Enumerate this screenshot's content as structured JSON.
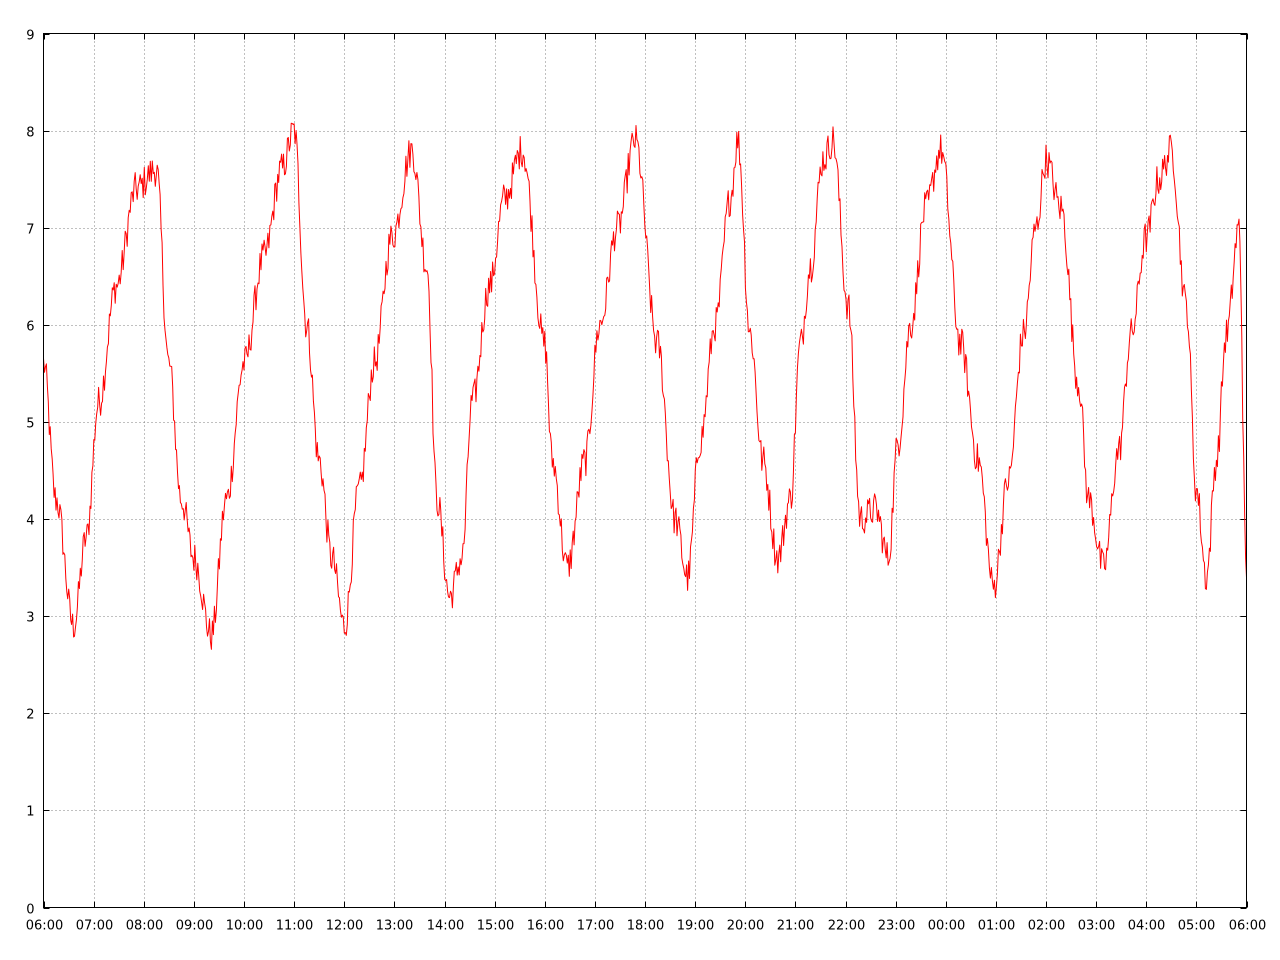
{
  "chart_data": {
    "type": "line",
    "title": "",
    "xlabel": "",
    "ylabel": "",
    "ylim": [
      0,
      9
    ],
    "y_ticks": [
      0,
      1,
      2,
      3,
      4,
      5,
      6,
      7,
      8,
      9
    ],
    "x_ticks": [
      "06:00",
      "07:00",
      "08:00",
      "09:00",
      "10:00",
      "11:00",
      "12:00",
      "13:00",
      "14:00",
      "15:00",
      "16:00",
      "17:00",
      "18:00",
      "19:00",
      "20:00",
      "21:00",
      "22:00",
      "23:00",
      "00:00",
      "01:00",
      "02:00",
      "03:00",
      "04:00",
      "05:00",
      "06:00"
    ],
    "x_range_hours": [
      0,
      24
    ],
    "grid": true,
    "line_color": "#ff0000",
    "series": [
      {
        "x_hours": [
          0.0,
          0.25,
          0.6,
          0.85,
          1.1,
          1.45,
          1.85,
          2.25,
          2.5,
          2.75,
          3.0,
          3.35,
          3.65,
          4.0,
          4.4,
          4.75,
          5.0,
          5.25,
          5.5,
          5.75,
          6.0,
          6.3,
          6.6,
          6.95,
          7.35,
          7.65,
          7.85,
          8.1,
          8.35,
          8.55,
          8.9,
          9.2,
          9.55,
          10.0,
          10.15,
          10.45,
          10.8,
          11.1,
          11.45,
          11.8,
          12.25,
          12.6,
          12.85,
          13.1,
          13.4,
          13.7,
          13.85,
          14.1,
          14.35,
          14.65,
          14.9,
          15.1,
          15.3,
          15.55,
          15.75,
          16.05,
          16.3,
          16.6,
          16.85,
          17.05,
          17.3,
          17.6,
          17.9,
          18.3,
          18.65,
          18.95,
          19.25,
          19.55,
          19.8,
          20.0,
          20.3,
          20.65,
          20.85,
          21.15,
          21.45,
          21.7,
          22.0,
          22.25,
          22.5,
          22.8,
          23.0,
          23.2,
          23.4,
          23.6,
          23.85,
          24.0
        ],
        "y": [
          5.6,
          4.2,
          2.9,
          3.8,
          5.2,
          6.4,
          7.4,
          7.6,
          5.6,
          4.2,
          3.6,
          2.8,
          4.2,
          5.6,
          6.7,
          7.6,
          8.0,
          6.0,
          4.6,
          3.6,
          2.9,
          4.3,
          5.6,
          6.9,
          7.8,
          6.6,
          4.2,
          3.2,
          3.6,
          5.2,
          6.4,
          7.3,
          7.8,
          5.8,
          4.6,
          3.5,
          4.6,
          6.0,
          7.0,
          7.9,
          5.8,
          4.0,
          3.4,
          4.8,
          6.0,
          7.3,
          7.9,
          5.9,
          4.6,
          3.6,
          4.2,
          5.8,
          6.6,
          7.7,
          7.9,
          6.2,
          4.0,
          4.1,
          3.6,
          4.8,
          6.0,
          7.2,
          7.8,
          5.8,
          4.6,
          3.3,
          4.4,
          5.9,
          7.0,
          7.7,
          7.2,
          5.4,
          4.2,
          3.5,
          4.7,
          5.9,
          6.9,
          7.5,
          7.8,
          6.2,
          4.3,
          3.4,
          4.6,
          5.9,
          7.0,
          3.4
        ]
      }
    ]
  }
}
